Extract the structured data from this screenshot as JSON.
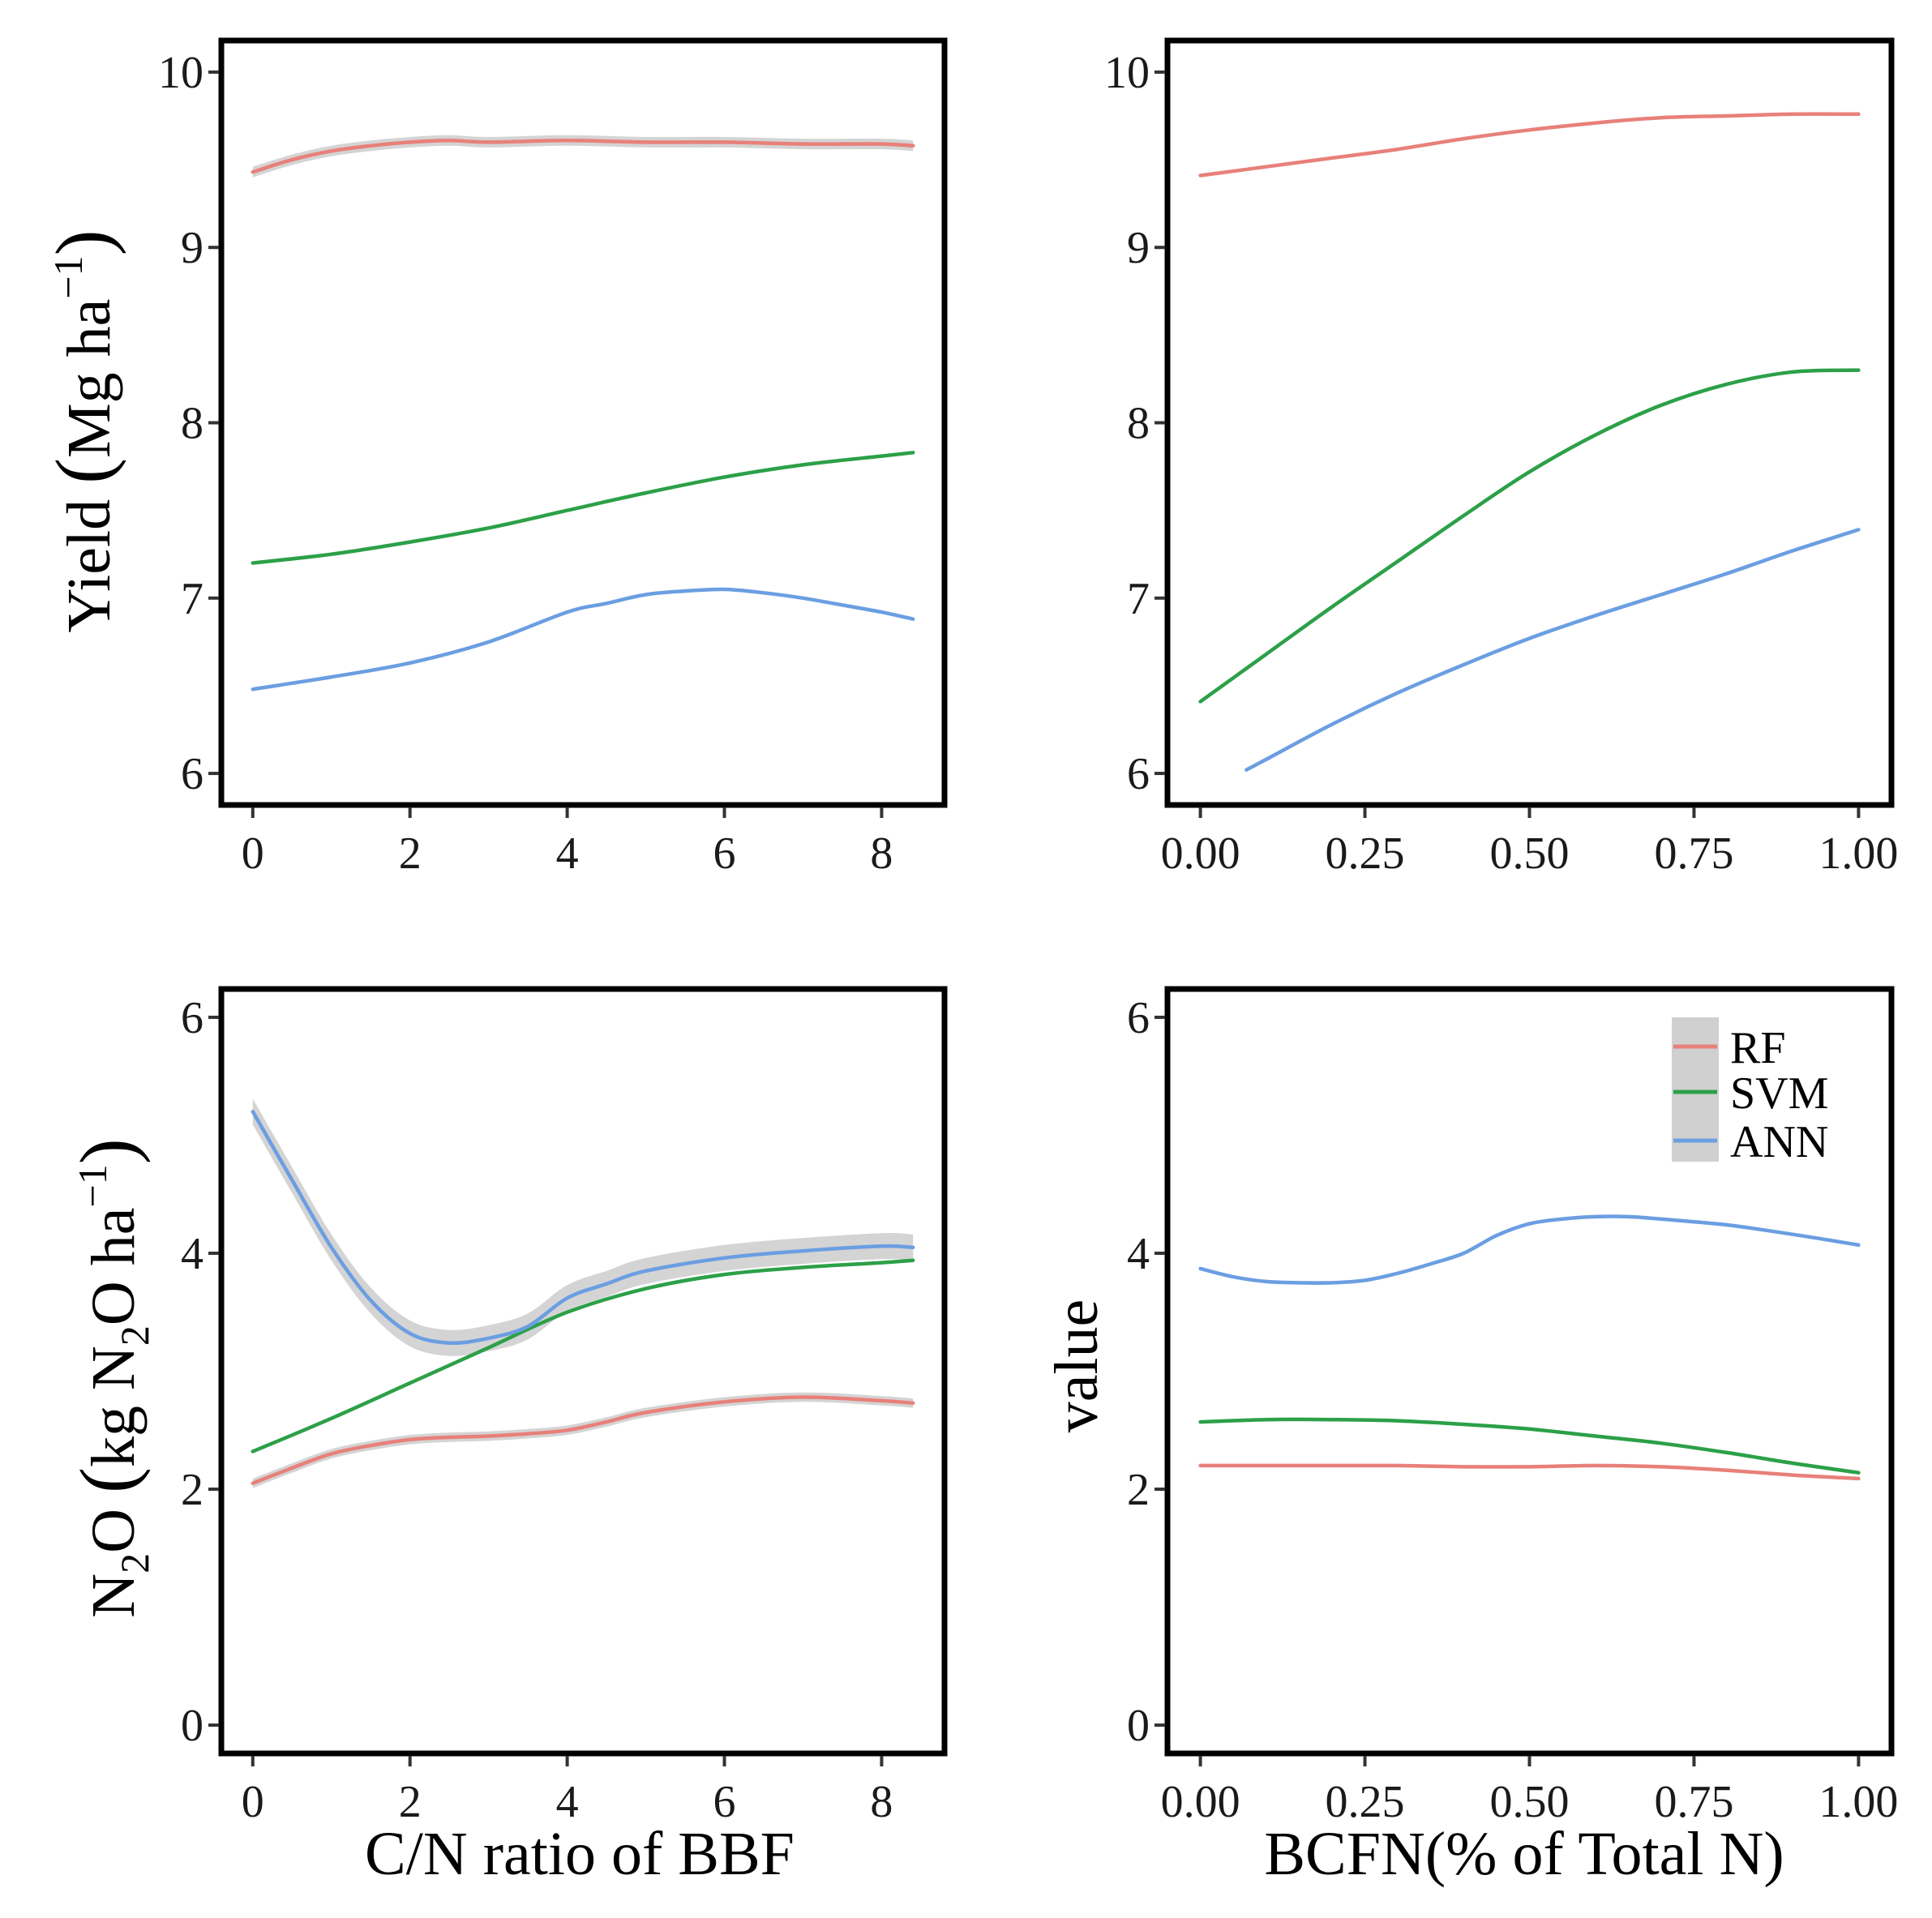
{
  "figure": {
    "xlabel_left": "C/N ratio of BBF",
    "xlabel_right": "BCFN(% of Total N)",
    "ylabel_top_parts": {
      "a": "Yield ",
      "b": "(",
      "c": "Mg ha",
      "sup": "−1",
      "d": ")"
    },
    "ylabel_bottom_parts": {
      "a": "N",
      "sub": "2",
      "b": "O ",
      "c": "(",
      "d": "kg N",
      "sub2": "2",
      "e": "O ha",
      "sup": "−1",
      "f": ")"
    },
    "ylabel_value": "value"
  },
  "legend": {
    "items": [
      {
        "label": "RF",
        "color": "#e8807a"
      },
      {
        "label": "SVM",
        "color": "#2ca048"
      },
      {
        "label": "ANN",
        "color": "#6b9ee2"
      }
    ]
  },
  "chart_data": [
    {
      "id": "yield-cn",
      "type": "line",
      "xlim": [
        -0.4,
        8.8
      ],
      "ylim": [
        5.82,
        10.18
      ],
      "xticks": [
        0,
        2,
        4,
        6,
        8
      ],
      "xtick_labels": [
        "0",
        "2",
        "4",
        "6",
        "8"
      ],
      "yticks": [
        6,
        7,
        8,
        9,
        10
      ],
      "ytick_labels": [
        "6",
        "7",
        "8",
        "9",
        "10"
      ],
      "series": [
        {
          "name": "RF",
          "band": 0.03,
          "x": [
            0,
            0.5,
            1,
            1.5,
            2,
            2.5,
            3,
            4,
            5,
            6,
            7,
            8,
            8.4
          ],
          "y": [
            9.43,
            9.5,
            9.55,
            9.58,
            9.6,
            9.61,
            9.6,
            9.61,
            9.6,
            9.6,
            9.59,
            9.59,
            9.58
          ]
        },
        {
          "name": "SVM",
          "band": 0.0,
          "x": [
            0,
            1,
            2,
            3,
            4,
            5,
            6,
            7,
            8,
            8.4
          ],
          "y": [
            7.2,
            7.25,
            7.32,
            7.4,
            7.5,
            7.6,
            7.69,
            7.76,
            7.81,
            7.83
          ]
        },
        {
          "name": "ANN",
          "band": 0.0,
          "x": [
            0,
            1,
            2,
            3,
            4,
            4.5,
            5,
            5.5,
            6,
            6.5,
            7,
            7.5,
            8,
            8.4
          ],
          "y": [
            6.48,
            6.55,
            6.63,
            6.75,
            6.92,
            6.97,
            7.02,
            7.04,
            7.05,
            7.03,
            7.0,
            6.96,
            6.92,
            6.88
          ]
        }
      ]
    },
    {
      "id": "yield-bcfn",
      "type": "line",
      "xlim": [
        -0.05,
        1.05
      ],
      "ylim": [
        5.82,
        10.18
      ],
      "xticks": [
        0,
        0.25,
        0.5,
        0.75,
        1
      ],
      "xtick_labels": [
        "0.00",
        "0.25",
        "0.50",
        "0.75",
        "1.00"
      ],
      "yticks": [
        6,
        7,
        8,
        9,
        10
      ],
      "ytick_labels": [
        "6",
        "7",
        "8",
        "9",
        "10"
      ],
      "series": [
        {
          "name": "RF",
          "band": 0.0,
          "x": [
            0,
            0.1,
            0.2,
            0.3,
            0.4,
            0.5,
            0.6,
            0.7,
            0.8,
            0.9,
            1.0
          ],
          "y": [
            9.41,
            9.46,
            9.51,
            9.56,
            9.62,
            9.67,
            9.71,
            9.74,
            9.75,
            9.76,
            9.76
          ]
        },
        {
          "name": "SVM",
          "band": 0.0,
          "x": [
            0,
            0.1,
            0.2,
            0.3,
            0.4,
            0.5,
            0.6,
            0.7,
            0.8,
            0.9,
            1.0
          ],
          "y": [
            6.41,
            6.68,
            6.95,
            7.21,
            7.47,
            7.72,
            7.93,
            8.1,
            8.22,
            8.29,
            8.3
          ]
        },
        {
          "name": "ANN",
          "band": 0.0,
          "x": [
            0.07,
            0.1,
            0.2,
            0.3,
            0.4,
            0.5,
            0.6,
            0.7,
            0.8,
            0.9,
            1.0
          ],
          "y": [
            6.02,
            6.08,
            6.28,
            6.46,
            6.62,
            6.77,
            6.9,
            7.02,
            7.14,
            7.27,
            7.39
          ]
        }
      ]
    },
    {
      "id": "n2o-cn",
      "type": "line",
      "xlim": [
        -0.4,
        8.8
      ],
      "ylim": [
        -0.24,
        6.24
      ],
      "xticks": [
        0,
        2,
        4,
        6,
        8
      ],
      "xtick_labels": [
        "0",
        "2",
        "4",
        "6",
        "8"
      ],
      "yticks": [
        0,
        2,
        4,
        6
      ],
      "ytick_labels": [
        "0",
        "2",
        "4",
        "6"
      ],
      "series": [
        {
          "name": "RF",
          "band": 0.04,
          "x": [
            0,
            0.5,
            1,
            1.5,
            2,
            2.5,
            3,
            3.5,
            4,
            4.5,
            5,
            6,
            7,
            8,
            8.4
          ],
          "y": [
            2.05,
            2.18,
            2.3,
            2.37,
            2.42,
            2.44,
            2.45,
            2.47,
            2.5,
            2.57,
            2.65,
            2.74,
            2.78,
            2.75,
            2.73
          ]
        },
        {
          "name": "SVM",
          "band": 0.0,
          "x": [
            0,
            1,
            2,
            3,
            4,
            5,
            6,
            7,
            8,
            8.4
          ],
          "y": [
            2.32,
            2.6,
            2.9,
            3.2,
            3.5,
            3.7,
            3.82,
            3.88,
            3.92,
            3.94
          ]
        },
        {
          "name": "ANN",
          "band": 0.11,
          "x": [
            0,
            0.5,
            1,
            1.5,
            2,
            2.5,
            3,
            3.5,
            4,
            4.5,
            5,
            6,
            7,
            8,
            8.4
          ],
          "y": [
            5.2,
            4.62,
            4.05,
            3.6,
            3.32,
            3.24,
            3.28,
            3.38,
            3.62,
            3.74,
            3.85,
            3.96,
            4.02,
            4.06,
            4.05
          ]
        }
      ]
    },
    {
      "id": "n2o-bcfn",
      "type": "line",
      "xlim": [
        -0.05,
        1.05
      ],
      "ylim": [
        -0.24,
        6.24
      ],
      "xticks": [
        0,
        0.25,
        0.5,
        0.75,
        1
      ],
      "xtick_labels": [
        "0.00",
        "0.25",
        "0.50",
        "0.75",
        "1.00"
      ],
      "yticks": [
        0,
        2,
        4,
        6
      ],
      "ytick_labels": [
        "0",
        "2",
        "4",
        "6"
      ],
      "series": [
        {
          "name": "RF",
          "band": 0.0,
          "x": [
            0,
            0.1,
            0.2,
            0.3,
            0.4,
            0.5,
            0.6,
            0.7,
            0.8,
            0.9,
            1.0
          ],
          "y": [
            2.2,
            2.2,
            2.2,
            2.2,
            2.19,
            2.19,
            2.2,
            2.19,
            2.16,
            2.12,
            2.09
          ]
        },
        {
          "name": "SVM",
          "band": 0.0,
          "x": [
            0,
            0.1,
            0.2,
            0.3,
            0.4,
            0.5,
            0.6,
            0.7,
            0.8,
            0.9,
            1.0
          ],
          "y": [
            2.57,
            2.59,
            2.59,
            2.58,
            2.55,
            2.51,
            2.45,
            2.39,
            2.31,
            2.22,
            2.14
          ]
        },
        {
          "name": "ANN",
          "band": 0.0,
          "x": [
            0,
            0.05,
            0.1,
            0.15,
            0.2,
            0.25,
            0.3,
            0.35,
            0.4,
            0.45,
            0.5,
            0.55,
            0.6,
            0.65,
            0.7,
            0.8,
            0.9,
            1.0
          ],
          "y": [
            3.87,
            3.8,
            3.76,
            3.75,
            3.75,
            3.77,
            3.83,
            3.91,
            4.0,
            4.15,
            4.25,
            4.29,
            4.31,
            4.31,
            4.29,
            4.24,
            4.16,
            4.07
          ]
        }
      ]
    }
  ]
}
